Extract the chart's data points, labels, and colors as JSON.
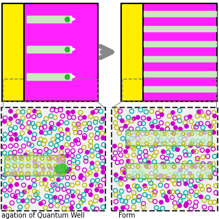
{
  "bg_color": "#ffffff",
  "yellow_color": "#FFEE00",
  "magenta_color": "#FF22FF",
  "light_green_bar": "#C8E8C0",
  "green_dot": "#22BB22",
  "arrow_gray": "#888888",
  "dot_magenta_filled": "#CC00CC",
  "dot_magenta_open": "#CC00CC",
  "dot_yellow_open": "#BBBB00",
  "dot_teal_open": "#00AAAA",
  "qw_fill": "#D0EED0",
  "qw_edge": "#44AA44",
  "atom_bg": "#F0F0F0",
  "panel_border": "#000000",
  "connector_color": "#888888",
  "label_left": "agation of Quantum Well",
  "label_right": "Form",
  "label_fontsize": 7
}
